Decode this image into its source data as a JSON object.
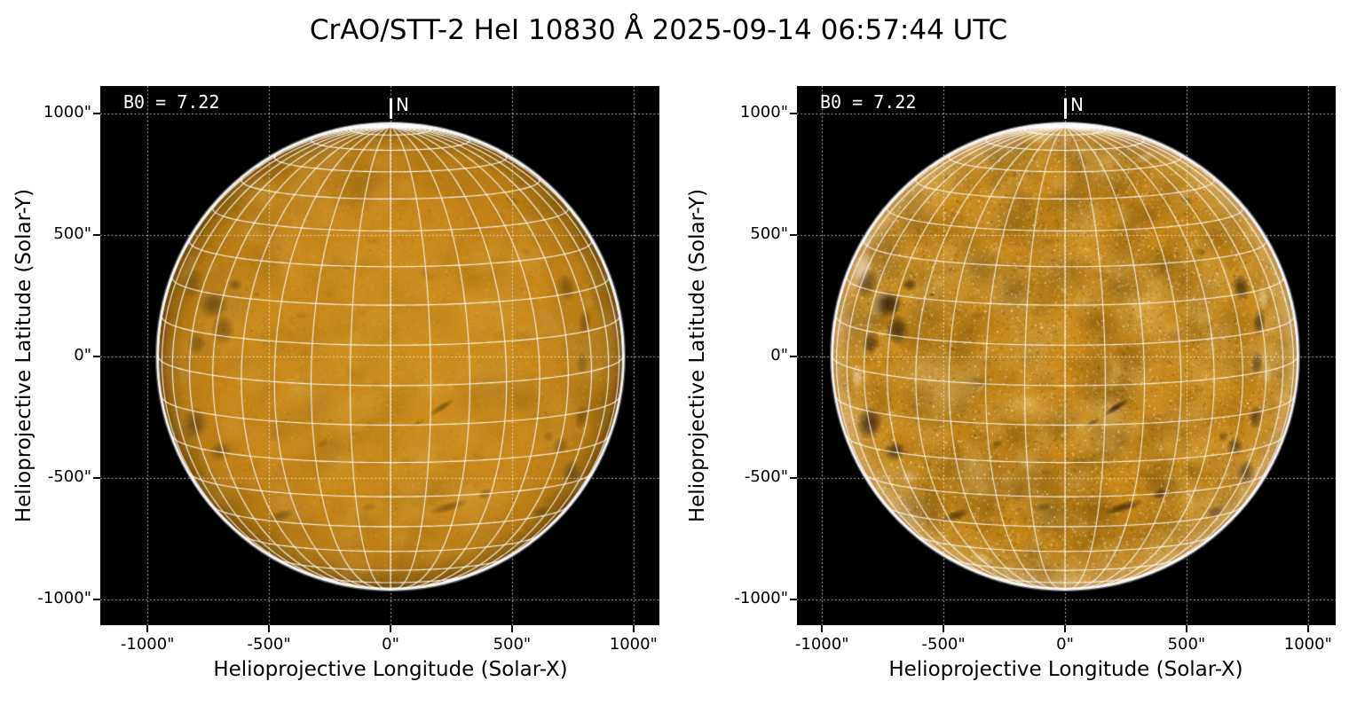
{
  "title": "CrAO/STT-2 HeI 10830 Å 2025-09-14 06:57:44 UTC",
  "panels": [
    {
      "b0_label": "B0 = 7.22",
      "north_label": "N",
      "xlabel": "Helioprojective Longitude (Solar-X)",
      "ylabel": "Helioprojective Latitude (Solar-Y)",
      "xtick_labels": [
        "-1000\"",
        "-500\"",
        "0\"",
        "500\"",
        "1000\""
      ],
      "ytick_labels": [
        "1000\"",
        "500\"",
        "0\"",
        "-500\"",
        "-1000\""
      ]
    },
    {
      "b0_label": "B0 = 7.22",
      "north_label": "N",
      "xlabel": "Helioprojective Longitude (Solar-X)",
      "ylabel": "Helioprojective Latitude (Solar-Y)",
      "xtick_labels": [
        "-1000\"",
        "-500\"",
        "0\"",
        "500\"",
        "1000\""
      ],
      "ytick_labels": [
        "1000\"",
        "500\"",
        "0\"",
        "-500\"",
        "-1000\""
      ]
    }
  ],
  "chart_data": {
    "type": "heatmap",
    "title": "CrAO/STT-2 HeI 10830 Å 2025-09-14 06:57:44 UTC",
    "xlabel": "Helioprojective Longitude (Solar-X)",
    "ylabel": "Helioprojective Latitude (Solar-Y)",
    "b0_deg": 7.22,
    "solar_radius_arcsec": 955,
    "heliographic_grid_spacing_deg": 10,
    "xticks_arcsec": [
      -1000,
      -500,
      0,
      500,
      1000
    ],
    "yticks_arcsec": [
      1000,
      500,
      0,
      -500,
      -1000
    ],
    "xlim_arcsec": [
      -1195,
      1105
    ],
    "ylim_arcsec": [
      -1110,
      1115
    ],
    "north_marker": "N",
    "colors": {
      "figure_bg": "#ffffff",
      "panel_bg": "#000000",
      "grid_line": "#ffffff",
      "dotted_grid": "#ffffff",
      "limb_rim": "#ffffff",
      "disk_core": "#d2921f",
      "disk_mid": "#c8861a",
      "disk_limb_dark": "#6d470a",
      "dark_feature": "#190e00",
      "speckle_bright": "#fff0c8",
      "speckle_dark": "#503205",
      "text_annotation": "#ffffff",
      "axis_text": "#000000"
    },
    "panel_styles": [
      {
        "style": "smooth",
        "seed": 42,
        "base_stops": [
          [
            0,
            "#d2921f"
          ],
          [
            0.72,
            "#c8861a"
          ],
          [
            0.9,
            "#b87a15"
          ],
          [
            0.965,
            "#96650f"
          ],
          [
            1,
            "#6d470a"
          ]
        ],
        "speckle_n": 7000,
        "speckle_a": 0.1,
        "mottle_n": 430,
        "mottle_a": 0.09,
        "white_n": 600,
        "white_a": 0.12,
        "dark_scale": 0.55,
        "bright_scale": 0.15,
        "limb_bright": 0.0,
        "grid_alpha": 0.9
      },
      {
        "style": "enhanced",
        "seed": 1337,
        "base_stops": [
          [
            0,
            "#cf8c1b"
          ],
          [
            0.85,
            "#c78618"
          ],
          [
            0.97,
            "#bd7e13"
          ],
          [
            1,
            "#a86e0e"
          ]
        ],
        "speckle_n": 14000,
        "speckle_a": 0.26,
        "mottle_n": 750,
        "mottle_a": 0.17,
        "white_n": 3600,
        "white_a": 0.5,
        "dark_scale": 1.0,
        "bright_scale": 1.0,
        "limb_bright": 0.3,
        "grid_alpha": 0.85
      }
    ],
    "features_format": "[x_arcsec, y_arcsec, rx_arcsec, ry_arcsec, rotation_deg, opacity]",
    "features_dark": [
      [
        -815,
        300,
        45,
        65,
        15,
        0.5
      ],
      [
        -730,
        215,
        65,
        60,
        -10,
        0.75
      ],
      [
        -690,
        110,
        50,
        65,
        0,
        0.65
      ],
      [
        -800,
        55,
        38,
        50,
        10,
        0.55
      ],
      [
        -640,
        295,
        32,
        26,
        0,
        0.55
      ],
      [
        -805,
        -275,
        55,
        70,
        10,
        0.75
      ],
      [
        -700,
        -390,
        48,
        42,
        -15,
        0.6
      ],
      [
        -450,
        -655,
        60,
        22,
        -18,
        0.55
      ],
      [
        -280,
        -360,
        28,
        16,
        -20,
        0.3
      ],
      [
        240,
        -620,
        90,
        20,
        -17,
        0.6
      ],
      [
        390,
        -565,
        32,
        22,
        -25,
        0.55
      ],
      [
        210,
        -210,
        62,
        15,
        -33,
        0.7
      ],
      [
        115,
        -272,
        32,
        11,
        -25,
        0.4
      ],
      [
        725,
        285,
        38,
        58,
        -12,
        0.6
      ],
      [
        800,
        140,
        28,
        60,
        5,
        0.55
      ],
      [
        790,
        -30,
        26,
        55,
        5,
        0.45
      ],
      [
        785,
        -250,
        30,
        52,
        8,
        0.55
      ],
      [
        745,
        -480,
        40,
        55,
        5,
        0.55
      ],
      [
        620,
        -640,
        42,
        26,
        -20,
        0.5
      ],
      [
        700,
        -370,
        36,
        42,
        0,
        0.5
      ],
      [
        650,
        -330,
        24,
        24,
        0,
        0.35
      ],
      [
        500,
        645,
        36,
        18,
        20,
        0.3
      ],
      [
        -180,
        368,
        24,
        13,
        5,
        0.3
      ],
      [
        -550,
        255,
        13,
        9,
        0,
        0.4
      ],
      [
        -490,
        735,
        11,
        8,
        0,
        0.35
      ],
      [
        -350,
        -105,
        48,
        30,
        0,
        0.16
      ],
      [
        450,
        85,
        42,
        26,
        0,
        0.15
      ],
      [
        150,
        335,
        40,
        22,
        10,
        0.15
      ],
      [
        -70,
        475,
        36,
        18,
        0,
        0.14
      ],
      [
        -255,
        525,
        30,
        15,
        0,
        0.14
      ],
      [
        60,
        -430,
        40,
        22,
        -10,
        0.16
      ],
      [
        -90,
        -620,
        40,
        18,
        -10,
        0.28
      ],
      [
        560,
        430,
        30,
        18,
        15,
        0.22
      ],
      [
        -360,
        170,
        35,
        20,
        0,
        0.14
      ],
      [
        -120,
        180,
        30,
        18,
        0,
        0.12
      ]
    ],
    "features_bright": [
      [
        -835,
        360,
        42,
        80,
        18,
        0.55
      ],
      [
        -765,
        215,
        30,
        55,
        10,
        0.4
      ],
      [
        -855,
        -90,
        22,
        55,
        -5,
        0.35
      ],
      [
        815,
        240,
        24,
        55,
        -8,
        0.35
      ],
      [
        835,
        -70,
        18,
        48,
        5,
        0.3
      ],
      [
        -640,
        -495,
        30,
        30,
        0,
        0.28
      ],
      [
        -340,
        -830,
        55,
        22,
        25,
        0.3
      ],
      [
        330,
        820,
        50,
        20,
        -20,
        0.25
      ],
      [
        -100,
        900,
        60,
        25,
        0,
        0.2
      ],
      [
        -820,
        480,
        30,
        40,
        25,
        0.35
      ]
    ]
  }
}
